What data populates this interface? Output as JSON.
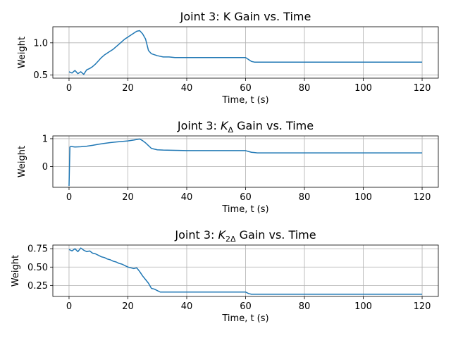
{
  "chart_data": [
    {
      "type": "line",
      "title": "Joint 3: K Gain vs. Time",
      "xlabel": "Time, t (s)",
      "ylabel": "Weight",
      "xlim": [
        -5.5,
        125.5
      ],
      "ylim": [
        0.45,
        1.25
      ],
      "xticks": [
        0,
        20,
        40,
        60,
        80,
        100,
        120
      ],
      "yticks": [
        0.5,
        1.0
      ],
      "ytick_labels": [
        "0.5",
        "1.0"
      ],
      "grid": true,
      "color": "#1f77b4",
      "x": [
        0,
        1,
        2,
        3,
        4,
        5,
        6,
        7,
        8,
        9,
        10,
        11,
        12,
        13,
        14,
        15,
        16,
        17,
        18,
        19,
        20,
        21,
        22,
        23,
        24,
        25,
        26,
        27,
        28,
        30,
        32,
        34,
        36,
        40,
        50,
        60,
        61,
        62,
        63,
        64,
        70,
        80,
        90,
        100,
        110,
        120
      ],
      "y": [
        0.55,
        0.53,
        0.57,
        0.52,
        0.55,
        0.51,
        0.58,
        0.6,
        0.63,
        0.67,
        0.72,
        0.77,
        0.81,
        0.84,
        0.87,
        0.9,
        0.94,
        0.98,
        1.02,
        1.06,
        1.09,
        1.12,
        1.15,
        1.18,
        1.19,
        1.14,
        1.06,
        0.88,
        0.83,
        0.8,
        0.78,
        0.78,
        0.77,
        0.77,
        0.77,
        0.77,
        0.74,
        0.71,
        0.7,
        0.7,
        0.7,
        0.7,
        0.7,
        0.7,
        0.7,
        0.7
      ]
    },
    {
      "type": "line",
      "title_parts": [
        "Joint 3: ",
        "K",
        "Δ",
        " Gain vs. Time"
      ],
      "xlabel": "Time, t (s)",
      "ylabel": "Weight",
      "xlim": [
        -5.5,
        125.5
      ],
      "ylim": [
        -0.75,
        1.1
      ],
      "xticks": [
        0,
        20,
        40,
        60,
        80,
        100,
        120
      ],
      "yticks": [
        0,
        1
      ],
      "ytick_labels": [
        "0",
        "1"
      ],
      "grid": true,
      "color": "#1f77b4",
      "x": [
        0,
        0.3,
        0.6,
        2,
        4,
        6,
        8,
        10,
        12,
        14,
        16,
        18,
        20,
        22,
        23,
        24,
        25,
        26,
        27,
        28,
        30,
        32,
        36,
        40,
        50,
        60,
        61,
        62,
        63,
        64,
        70,
        80,
        90,
        100,
        110,
        120
      ],
      "y": [
        -0.7,
        0.7,
        0.72,
        0.7,
        0.71,
        0.73,
        0.76,
        0.8,
        0.83,
        0.86,
        0.88,
        0.9,
        0.92,
        0.95,
        0.97,
        0.99,
        0.93,
        0.85,
        0.75,
        0.65,
        0.6,
        0.59,
        0.58,
        0.57,
        0.57,
        0.57,
        0.54,
        0.51,
        0.5,
        0.49,
        0.49,
        0.49,
        0.49,
        0.49,
        0.49,
        0.49
      ]
    },
    {
      "type": "line",
      "title_parts": [
        "Joint 3: ",
        "K",
        "2Δ",
        " Gain vs. Time"
      ],
      "xlabel": "Time, t (s)",
      "ylabel": "Weight",
      "xlim": [
        -5.5,
        125.5
      ],
      "ylim": [
        0.1,
        0.8
      ],
      "xticks": [
        0,
        20,
        40,
        60,
        80,
        100,
        120
      ],
      "yticks": [
        0.25,
        0.5,
        0.75
      ],
      "ytick_labels": [
        "0.25",
        "0.50",
        "0.75"
      ],
      "grid": true,
      "color": "#1f77b4",
      "x": [
        0,
        1,
        2,
        3,
        4,
        5,
        6,
        7,
        8,
        9,
        10,
        11,
        12,
        13,
        14,
        15,
        16,
        17,
        18,
        19,
        20,
        21,
        22,
        23,
        24,
        25,
        26,
        27,
        28,
        29,
        30,
        31,
        34,
        40,
        50,
        60,
        61,
        62,
        63,
        64,
        70,
        80,
        90,
        100,
        110,
        120
      ],
      "y": [
        0.74,
        0.72,
        0.75,
        0.71,
        0.76,
        0.73,
        0.71,
        0.72,
        0.69,
        0.68,
        0.66,
        0.64,
        0.63,
        0.61,
        0.6,
        0.58,
        0.57,
        0.55,
        0.54,
        0.52,
        0.5,
        0.49,
        0.48,
        0.49,
        0.44,
        0.38,
        0.33,
        0.28,
        0.21,
        0.2,
        0.18,
        0.16,
        0.16,
        0.16,
        0.16,
        0.16,
        0.14,
        0.13,
        0.13,
        0.13,
        0.13,
        0.13,
        0.13,
        0.13,
        0.13,
        0.13
      ]
    }
  ]
}
